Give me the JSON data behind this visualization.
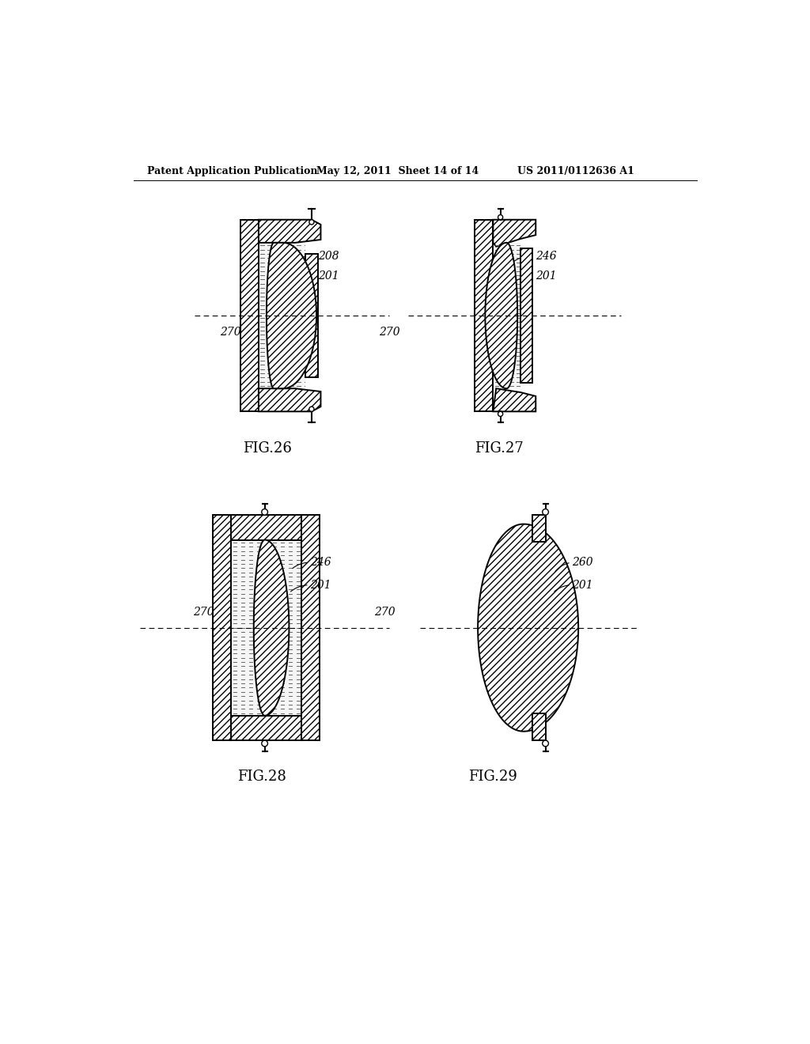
{
  "header_left": "Patent Application Publication",
  "header_mid": "May 12, 2011  Sheet 14 of 14",
  "header_right": "US 2011/0112636 A1",
  "background_color": "#ffffff",
  "line_color": "#000000"
}
